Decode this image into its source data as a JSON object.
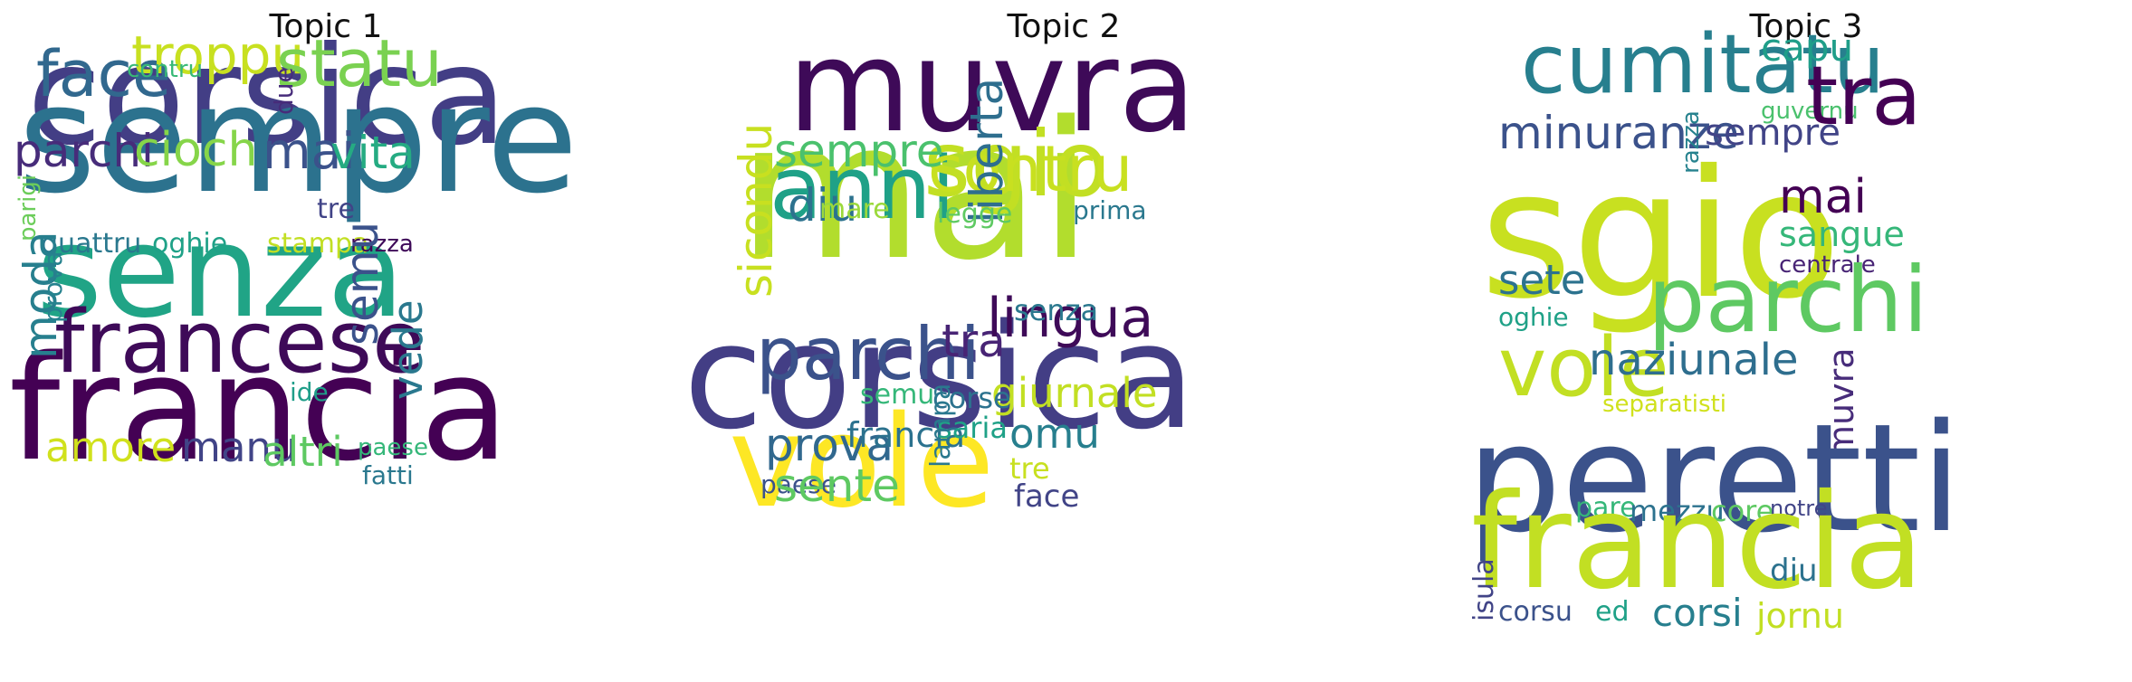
{
  "topics": [
    {
      "title": "Topic 1",
      "words": [
        {
          "text": "corsica",
          "color": "#433e85",
          "size": 150,
          "v": false
        },
        {
          "text": "sempre",
          "color": "#2c728e",
          "size": 165,
          "v": false
        },
        {
          "text": "senza",
          "color": "#20a486",
          "size": 140,
          "v": false
        },
        {
          "text": "francia",
          "color": "#440154",
          "size": 160,
          "v": false
        },
        {
          "text": "francese",
          "color": "#3e0a58",
          "size": 95,
          "v": false
        },
        {
          "text": "face",
          "color": "#31688e",
          "size": 70,
          "v": false
        },
        {
          "text": "troppu",
          "color": "#c8e020",
          "size": 58,
          "v": false
        },
        {
          "text": "statu",
          "color": "#7ad151",
          "size": 72,
          "v": false
        },
        {
          "text": "contru",
          "color": "#38b977",
          "size": 26,
          "v": false
        },
        {
          "text": "parchi",
          "color": "#472c7a",
          "size": 50,
          "v": false
        },
        {
          "text": "cioch",
          "color": "#86d549",
          "size": 52,
          "v": false
        },
        {
          "text": "mai",
          "color": "#3b528b",
          "size": 55,
          "v": false
        },
        {
          "text": "vita",
          "color": "#25ab82",
          "size": 50,
          "v": false
        },
        {
          "text": "due",
          "color": "#472c7a",
          "size": 28,
          "v": true
        },
        {
          "text": "parigi",
          "color": "#6ccd5a",
          "size": 26,
          "v": true
        },
        {
          "text": "tre",
          "color": "#414487",
          "size": 30,
          "v": false
        },
        {
          "text": "quattru",
          "color": "#2a788e",
          "size": 30,
          "v": false
        },
        {
          "text": "oghie",
          "color": "#1fa187",
          "size": 30,
          "v": false
        },
        {
          "text": "stampa",
          "color": "#c2df23",
          "size": 30,
          "v": false
        },
        {
          "text": "razza",
          "color": "#3e0a58",
          "size": 26,
          "v": false
        },
        {
          "text": "moda",
          "color": "#277f8e",
          "size": 50,
          "v": true
        },
        {
          "text": "prova",
          "color": "#26828e",
          "size": 28,
          "v": true
        },
        {
          "text": "semu",
          "color": "#3b528b",
          "size": 50,
          "v": true
        },
        {
          "text": "vede",
          "color": "#2a788e",
          "size": 45,
          "v": true
        },
        {
          "text": "ide",
          "color": "#1f9e89",
          "size": 28,
          "v": false
        },
        {
          "text": "amore",
          "color": "#d0e11c",
          "size": 45,
          "v": false
        },
        {
          "text": "manu",
          "color": "#414487",
          "size": 45,
          "v": false
        },
        {
          "text": "altri",
          "color": "#5ec962",
          "size": 45,
          "v": false
        },
        {
          "text": "paese",
          "color": "#35b779",
          "size": 26,
          "v": false
        },
        {
          "text": "fatti",
          "color": "#2a788e",
          "size": 28,
          "v": false
        }
      ]
    },
    {
      "title": "Topic 2",
      "words": [
        {
          "text": "muvra",
          "color": "#3e0a58",
          "size": 140,
          "v": false
        },
        {
          "text": "mai",
          "color": "#b2dd2d",
          "size": 210,
          "v": false
        },
        {
          "text": "corsica",
          "color": "#433e85",
          "size": 160,
          "v": false
        },
        {
          "text": "vole",
          "color": "#fde725",
          "size": 140,
          "v": false
        },
        {
          "text": "anni",
          "color": "#1fa187",
          "size": 95,
          "v": false
        },
        {
          "text": "sgio",
          "color": "#c2df23",
          "size": 100,
          "v": false
        },
        {
          "text": "contru",
          "color": "#c8e020",
          "size": 70,
          "v": false
        },
        {
          "text": "sempre",
          "color": "#4ac16d",
          "size": 50,
          "v": false
        },
        {
          "text": "diu",
          "color": "#2c728e",
          "size": 50,
          "v": false
        },
        {
          "text": "mare",
          "color": "#9bd93c",
          "size": 30,
          "v": false
        },
        {
          "text": "liberta",
          "color": "#2e6e8e",
          "size": 50,
          "v": true
        },
        {
          "text": "legge",
          "color": "#5ec962",
          "size": 30,
          "v": false
        },
        {
          "text": "prima",
          "color": "#2a788e",
          "size": 28,
          "v": false
        },
        {
          "text": "sicondu",
          "color": "#c8e020",
          "size": 50,
          "v": true
        },
        {
          "text": "parchi",
          "color": "#3b528b",
          "size": 80,
          "v": false
        },
        {
          "text": "tra",
          "color": "#482475",
          "size": 50,
          "v": false
        },
        {
          "text": "lingua",
          "color": "#3e0a58",
          "size": 60,
          "v": false
        },
        {
          "text": "senza",
          "color": "#2a788e",
          "size": 32,
          "v": false
        },
        {
          "text": "giurnale",
          "color": "#c2df23",
          "size": 45,
          "v": false
        },
        {
          "text": "semu",
          "color": "#35b779",
          "size": 30,
          "v": false
        },
        {
          "text": "corse",
          "color": "#2c728e",
          "size": 32,
          "v": false
        },
        {
          "text": "prova",
          "color": "#31688e",
          "size": 50,
          "v": false
        },
        {
          "text": "francia",
          "color": "#2c728e",
          "size": 38,
          "v": false
        },
        {
          "text": "saria",
          "color": "#1fa187",
          "size": 32,
          "v": false
        },
        {
          "text": "omu",
          "color": "#277f8e",
          "size": 45,
          "v": false
        },
        {
          "text": "paese",
          "color": "#3b528b",
          "size": 28,
          "v": false
        },
        {
          "text": "lampa",
          "color": "#2a788e",
          "size": 30,
          "v": true
        },
        {
          "text": "tre",
          "color": "#c8e020",
          "size": 32,
          "v": false
        },
        {
          "text": "sente",
          "color": "#5ec962",
          "size": 50,
          "v": false
        },
        {
          "text": "face",
          "color": "#414487",
          "size": 34,
          "v": false
        }
      ]
    },
    {
      "title": "Topic 3",
      "words": [
        {
          "text": "cumitatu",
          "color": "#277f8e",
          "size": 90,
          "v": false
        },
        {
          "text": "capu",
          "color": "#1f9e89",
          "size": 42,
          "v": false
        },
        {
          "text": "guvernu",
          "color": "#4ac16d",
          "size": 26,
          "v": false
        },
        {
          "text": "tra",
          "color": "#440154",
          "size": 90,
          "v": false
        },
        {
          "text": "minuranze",
          "color": "#3b528b",
          "size": 50,
          "v": false
        },
        {
          "text": "sempre",
          "color": "#414487",
          "size": 40,
          "v": false
        },
        {
          "text": "sgio",
          "color": "#c8e020",
          "size": 195,
          "v": false
        },
        {
          "text": "mai",
          "color": "#440154",
          "size": 52,
          "v": false
        },
        {
          "text": "sangue",
          "color": "#35b779",
          "size": 38,
          "v": false
        },
        {
          "text": "razza",
          "color": "#26828e",
          "size": 26,
          "v": true
        },
        {
          "text": "centrale",
          "color": "#482475",
          "size": 26,
          "v": false
        },
        {
          "text": "sete",
          "color": "#2c728e",
          "size": 45,
          "v": false
        },
        {
          "text": "parchi",
          "color": "#5ec962",
          "size": 100,
          "v": false
        },
        {
          "text": "oghie",
          "color": "#1fa187",
          "size": 28,
          "v": false
        },
        {
          "text": "vole",
          "color": "#c2df23",
          "size": 90,
          "v": false
        },
        {
          "text": "naziunale",
          "color": "#2e6e8e",
          "size": 48,
          "v": false
        },
        {
          "text": "muvra",
          "color": "#472c7a",
          "size": 38,
          "v": true
        },
        {
          "text": "separatisti",
          "color": "#d0e11c",
          "size": 26,
          "v": false
        },
        {
          "text": "peretti",
          "color": "#3b528b",
          "size": 165,
          "v": false
        },
        {
          "text": "pare",
          "color": "#35b779",
          "size": 30,
          "v": false
        },
        {
          "text": "mezzu",
          "color": "#2c728e",
          "size": 32,
          "v": false
        },
        {
          "text": "core",
          "color": "#5ec962",
          "size": 32,
          "v": false
        },
        {
          "text": "notre",
          "color": "#414487",
          "size": 24,
          "v": false
        },
        {
          "text": "francia",
          "color": "#c2df23",
          "size": 145,
          "v": false
        },
        {
          "text": "isula",
          "color": "#414487",
          "size": 30,
          "v": true
        },
        {
          "text": "diu",
          "color": "#2c728e",
          "size": 34,
          "v": false
        },
        {
          "text": "corsu",
          "color": "#3b528b",
          "size": 30,
          "v": false
        },
        {
          "text": "ed",
          "color": "#1fa187",
          "size": 30,
          "v": false
        },
        {
          "text": "corsi",
          "color": "#277f8e",
          "size": 42,
          "v": false
        },
        {
          "text": "jornu",
          "color": "#c2df23",
          "size": 38,
          "v": false
        }
      ]
    }
  ]
}
